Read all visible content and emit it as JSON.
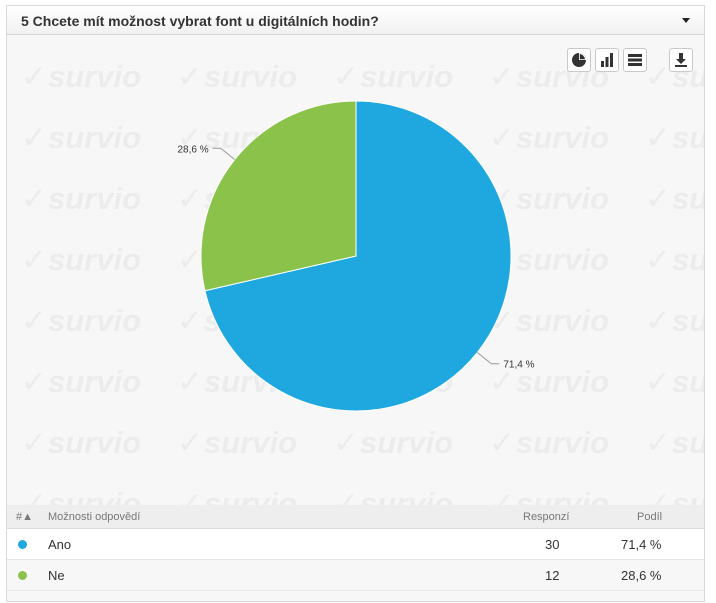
{
  "question": {
    "title": "5 Chcete mít možnost vybrat font u digitálních hodin?"
  },
  "watermark": {
    "text": "survio",
    "mark": "✓"
  },
  "toolbar": {
    "icons": [
      "pie-chart-icon",
      "bar-chart-icon",
      "table-view-icon",
      "download-icon"
    ]
  },
  "chart_data": {
    "type": "pie",
    "categories": [
      "Ano",
      "Ne"
    ],
    "values": [
      71.4,
      28.6
    ],
    "labels": [
      "71,4 %",
      "28,6 %"
    ],
    "colors": [
      "#1fa8e0",
      "#8bc34a"
    ]
  },
  "table": {
    "headers": {
      "index": "#▲",
      "option": "Možnosti odpovědí",
      "responses": "Responzí",
      "share": "Podíl"
    },
    "rows": [
      {
        "label": "Ano",
        "responses": "30",
        "share": "71,4 %",
        "color": "#1fa8e0"
      },
      {
        "label": "Ne",
        "responses": "12",
        "share": "28,6 %",
        "color": "#8bc34a"
      }
    ]
  }
}
